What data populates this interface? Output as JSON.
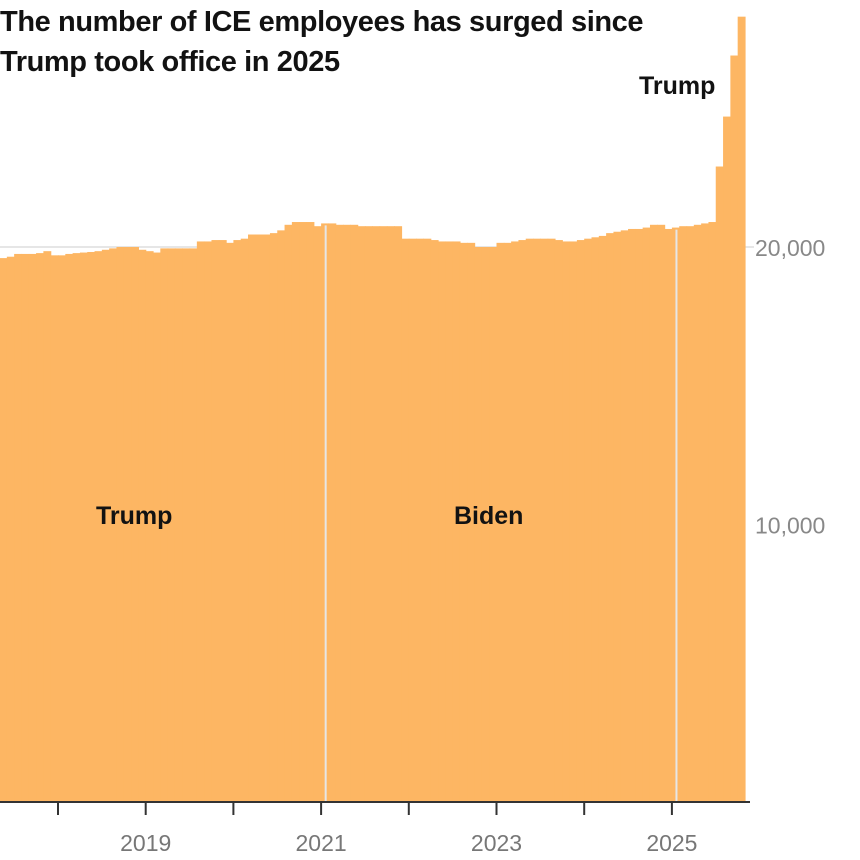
{
  "chart_data": {
    "type": "bar",
    "title": "The number of ICE employees has surged since Trump took office in 2025",
    "xlabel": "",
    "ylabel": "",
    "start_month": "2017-05",
    "frequency": "monthly",
    "values": [
      19600,
      19650,
      19750,
      19750,
      19750,
      19780,
      19850,
      19700,
      19700,
      19750,
      19780,
      19800,
      19820,
      19850,
      19900,
      19950,
      20000,
      20000,
      20000,
      19900,
      19850,
      19800,
      19950,
      19950,
      19950,
      19950,
      19950,
      20200,
      20200,
      20250,
      20250,
      20150,
      20250,
      20300,
      20450,
      20450,
      20450,
      20500,
      20600,
      20800,
      20900,
      20900,
      20900,
      20750,
      20850,
      20850,
      20800,
      20800,
      20800,
      20750,
      20750,
      20750,
      20750,
      20750,
      20750,
      20300,
      20300,
      20300,
      20300,
      20250,
      20200,
      20200,
      20200,
      20150,
      20150,
      20000,
      20000,
      20000,
      20150,
      20150,
      20200,
      20250,
      20300,
      20300,
      20300,
      20300,
      20250,
      20200,
      20200,
      20250,
      20300,
      20350,
      20400,
      20500,
      20550,
      20600,
      20650,
      20650,
      20700,
      20800,
      20800,
      20650,
      20700,
      20750,
      20750,
      20800,
      20850,
      20900,
      22900,
      24700,
      26900,
      28300
    ],
    "ylim": [
      0,
      29000
    ],
    "xlim": [
      "2017-05",
      "2025-10"
    ],
    "y_ticks": [
      {
        "value": 10000,
        "label": "10,000"
      },
      {
        "value": 20000,
        "label": "20,000"
      }
    ],
    "x_ticks": [
      2018,
      2019,
      2020,
      2021,
      2022,
      2023,
      2024,
      2025
    ],
    "x_tick_labels": [
      {
        "year": 2019,
        "label": "2019"
      },
      {
        "year": 2021,
        "label": "2021"
      },
      {
        "year": 2023,
        "label": "2023"
      },
      {
        "year": 2025,
        "label": "2025"
      }
    ],
    "gridlines": [
      20000
    ],
    "term_dividers": [
      "2021-01-20",
      "2025-01-20"
    ],
    "annotations": [
      {
        "label": "Trump",
        "period": "2017-2021"
      },
      {
        "label": "Biden",
        "period": "2021-2025"
      },
      {
        "label": "Trump",
        "period": "2025-"
      }
    ],
    "colors": {
      "bar": "#FDB663",
      "divider": "#E6E6E6",
      "grid": "#DDDDDD",
      "axis": "#333333",
      "tick_label": "#888888"
    }
  }
}
